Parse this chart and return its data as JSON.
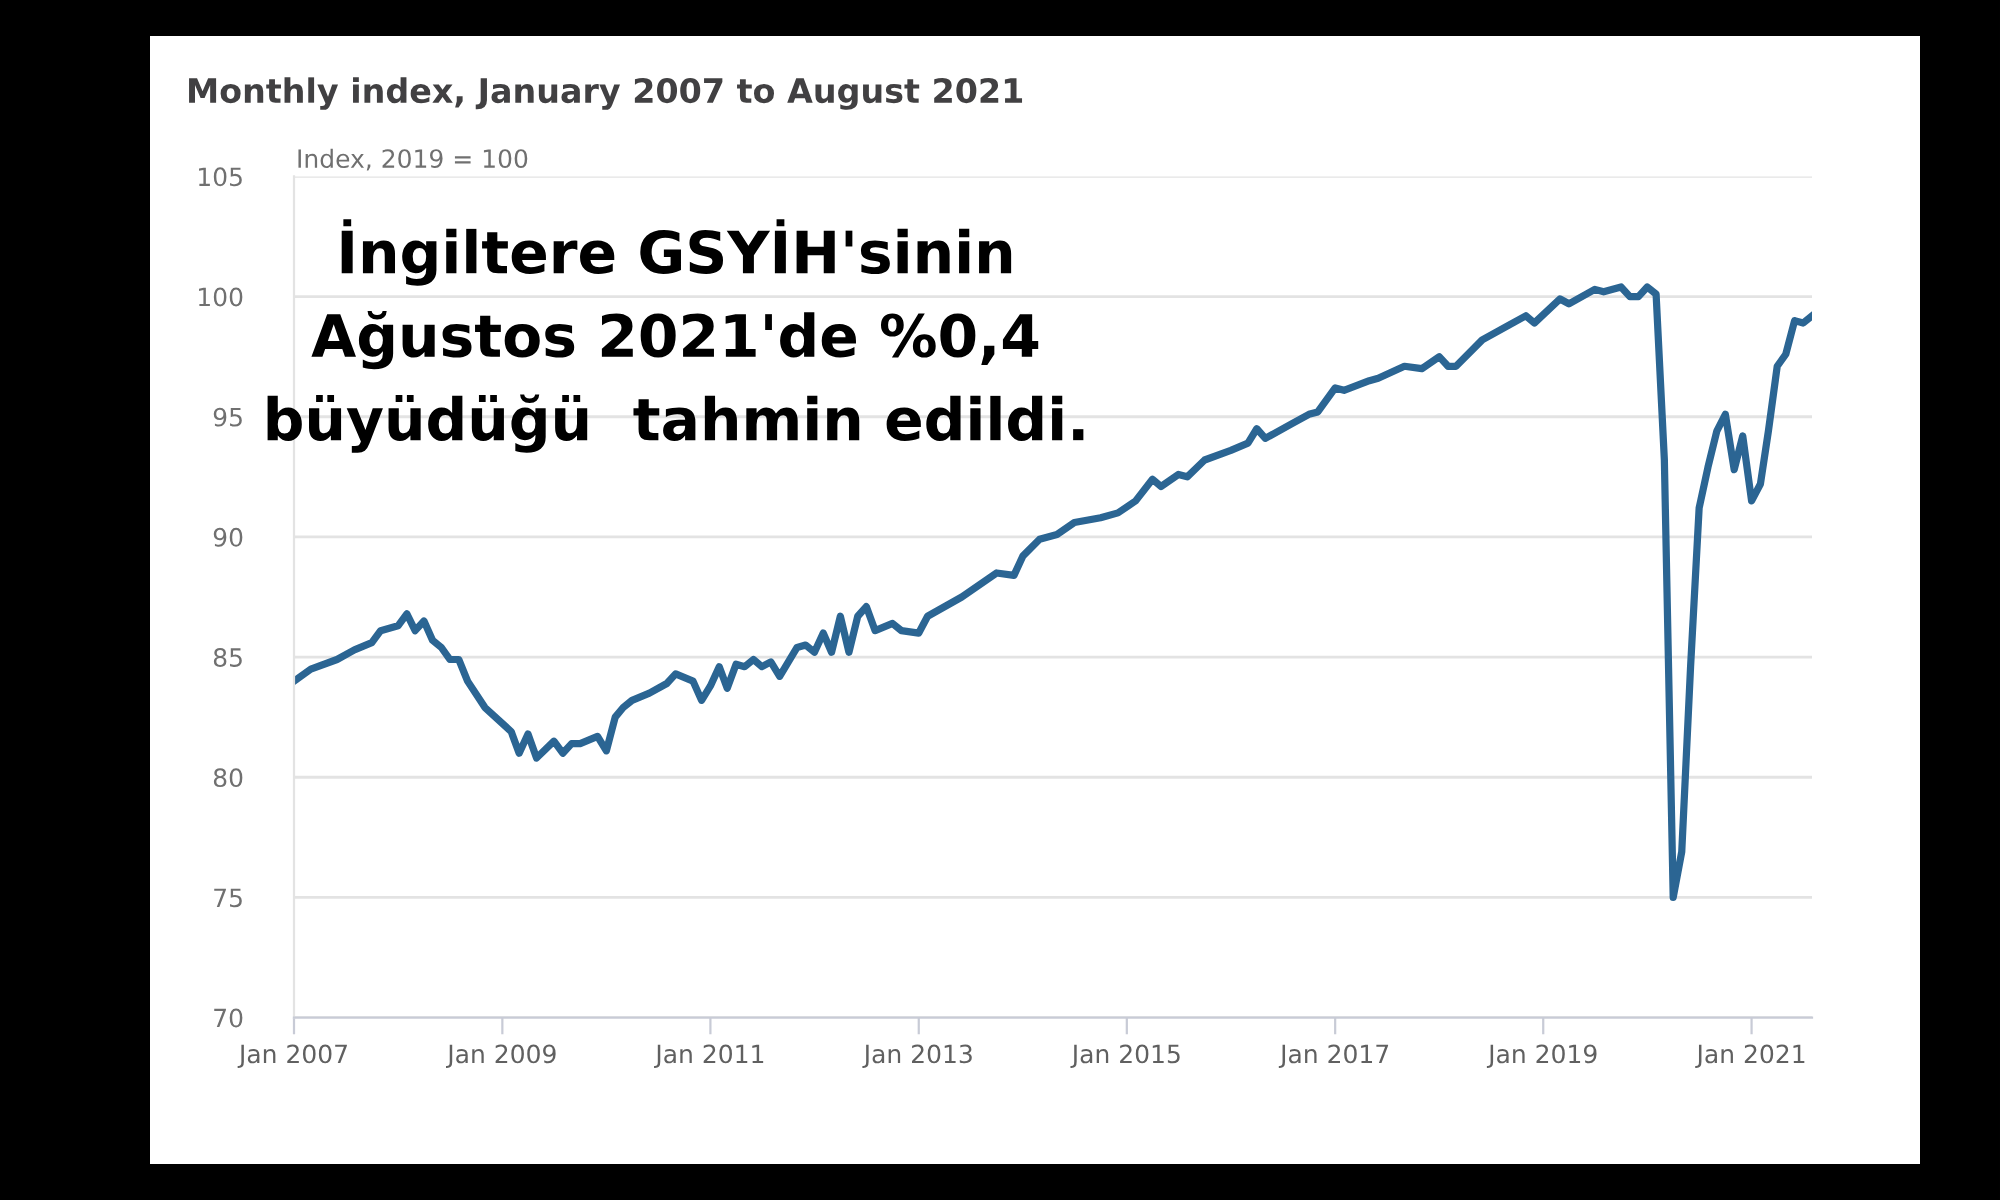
{
  "chart_data": {
    "type": "line",
    "title": "Monthly index, January 2007 to August 2021",
    "ylabel": "Index, 2019 = 100",
    "annotations": [
      "İngiltere GSYİH'sinin\nAğustos 2021'de %0,4\nbüyüdüğü  tahmin edildi."
    ],
    "x": [
      "2007-01",
      "2007-03",
      "2007-06",
      "2007-08",
      "2007-10",
      "2007-11",
      "2008-01",
      "2008-02",
      "2008-03",
      "2008-04",
      "2008-05",
      "2008-06",
      "2008-07",
      "2008-08",
      "2008-09",
      "2008-11",
      "2009-02",
      "2009-03",
      "2009-04",
      "2009-05",
      "2009-07",
      "2009-08",
      "2009-09",
      "2009-10",
      "2009-12",
      "2010-01",
      "2010-02",
      "2010-03",
      "2010-04",
      "2010-06",
      "2010-08",
      "2010-09",
      "2010-11",
      "2010-12",
      "2011-01",
      "2011-02",
      "2011-03",
      "2011-04",
      "2011-05",
      "2011-06",
      "2011-07",
      "2011-08",
      "2011-09",
      "2011-11",
      "2011-12",
      "2012-01",
      "2012-02",
      "2012-03",
      "2012-04",
      "2012-05",
      "2012-06",
      "2012-07",
      "2012-08",
      "2012-10",
      "2012-11",
      "2013-01",
      "2013-02",
      "2013-06",
      "2013-08",
      "2013-10",
      "2013-12",
      "2014-01",
      "2014-03",
      "2014-05",
      "2014-07",
      "2014-10",
      "2014-12",
      "2015-02",
      "2015-04",
      "2015-05",
      "2015-07",
      "2015-08",
      "2015-10",
      "2016-01",
      "2016-03",
      "2016-04",
      "2016-05",
      "2016-08",
      "2016-10",
      "2016-11",
      "2017-01",
      "2017-02",
      "2017-05",
      "2017-06",
      "2017-09",
      "2017-11",
      "2018-01",
      "2018-02",
      "2018-03",
      "2018-06",
      "2018-09",
      "2018-11",
      "2018-12",
      "2019-03",
      "2019-04",
      "2019-07",
      "2019-08",
      "2019-10",
      "2019-11",
      "2019-12",
      "2020-01",
      "2020-02",
      "2020-03",
      "2020-04",
      "2020-05",
      "2020-06",
      "2020-07",
      "2020-08",
      "2020-09",
      "2020-10",
      "2020-11",
      "2020-12",
      "2021-01",
      "2021-02",
      "2021-03",
      "2021-04",
      "2021-05",
      "2021-06",
      "2021-07",
      "2021-08"
    ],
    "series": [
      {
        "color": "#2b6593",
        "values": [
          84.0,
          84.5,
          84.9,
          85.3,
          85.6,
          86.1,
          86.3,
          86.8,
          86.1,
          86.5,
          85.7,
          85.4,
          84.9,
          84.9,
          84.0,
          82.9,
          81.9,
          81.0,
          81.8,
          80.8,
          81.5,
          81.0,
          81.4,
          81.4,
          81.7,
          81.1,
          82.5,
          82.9,
          83.2,
          83.5,
          83.9,
          84.3,
          84.0,
          83.2,
          83.8,
          84.6,
          83.7,
          84.7,
          84.6,
          84.9,
          84.6,
          84.8,
          84.2,
          85.4,
          85.5,
          85.2,
          86.0,
          85.2,
          86.7,
          85.2,
          86.7,
          87.1,
          86.1,
          86.4,
          86.1,
          86.0,
          86.7,
          87.5,
          88.0,
          88.5,
          88.4,
          89.2,
          89.9,
          90.1,
          90.6,
          90.8,
          91.0,
          91.5,
          92.4,
          92.1,
          92.6,
          92.5,
          93.2,
          93.6,
          93.9,
          94.5,
          94.1,
          94.7,
          95.1,
          95.2,
          96.2,
          96.1,
          96.5,
          96.6,
          97.1,
          97.0,
          97.5,
          97.1,
          97.1,
          98.2,
          98.8,
          99.2,
          98.9,
          99.9,
          99.7,
          100.3,
          100.2,
          100.4,
          100.0,
          100.0,
          100.4,
          100.1,
          93.2,
          75.0,
          76.9,
          84.6,
          91.2,
          92.9,
          94.4,
          95.1,
          92.8,
          94.2,
          91.5,
          92.2,
          94.4,
          97.1,
          97.6,
          99.0,
          98.9,
          99.2
        ]
      }
    ],
    "xlim": [
      "2007-01",
      "2021-08"
    ],
    "xticks": [
      {
        "value": "2007-01",
        "label": "Jan 2007"
      },
      {
        "value": "2009-01",
        "label": "Jan 2009"
      },
      {
        "value": "2011-01",
        "label": "Jan 2011"
      },
      {
        "value": "2013-01",
        "label": "Jan 2013"
      },
      {
        "value": "2015-01",
        "label": "Jan 2015"
      },
      {
        "value": "2017-01",
        "label": "Jan 2017"
      },
      {
        "value": "2019-01",
        "label": "Jan 2019"
      },
      {
        "value": "2021-01",
        "label": "Jan 2021"
      }
    ],
    "ylim": [
      70,
      105
    ],
    "yticks": [
      70,
      75,
      80,
      85,
      90,
      95,
      100,
      105
    ],
    "grid": "y",
    "marker": "none",
    "line_style": "solid"
  }
}
